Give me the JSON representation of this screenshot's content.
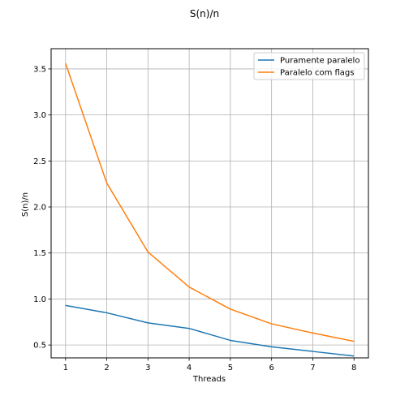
{
  "chart_data": {
    "type": "line",
    "title": "S(n)/n",
    "xlabel": "Threads",
    "ylabel": "S(n)/n",
    "x": [
      1,
      2,
      3,
      4,
      5,
      6,
      7,
      8
    ],
    "xticks": [
      "1",
      "2",
      "3",
      "4",
      "5",
      "6",
      "7",
      "8"
    ],
    "yticks": [
      "0.5",
      "1.0",
      "1.5",
      "2.0",
      "2.5",
      "3.0",
      "3.5"
    ],
    "xlim": [
      0.65,
      8.35
    ],
    "ylim": [
      0.36,
      3.72
    ],
    "grid": true,
    "legend_position": "top-right",
    "series": [
      {
        "name": "Puramente paralelo",
        "color": "#1f77b4",
        "values": [
          0.93,
          0.85,
          0.74,
          0.68,
          0.55,
          0.48,
          0.43,
          0.38
        ]
      },
      {
        "name": "Paralelo com flags",
        "color": "#ff7f0e",
        "values": [
          3.56,
          2.26,
          1.51,
          1.13,
          0.89,
          0.73,
          0.63,
          0.54
        ]
      }
    ]
  }
}
